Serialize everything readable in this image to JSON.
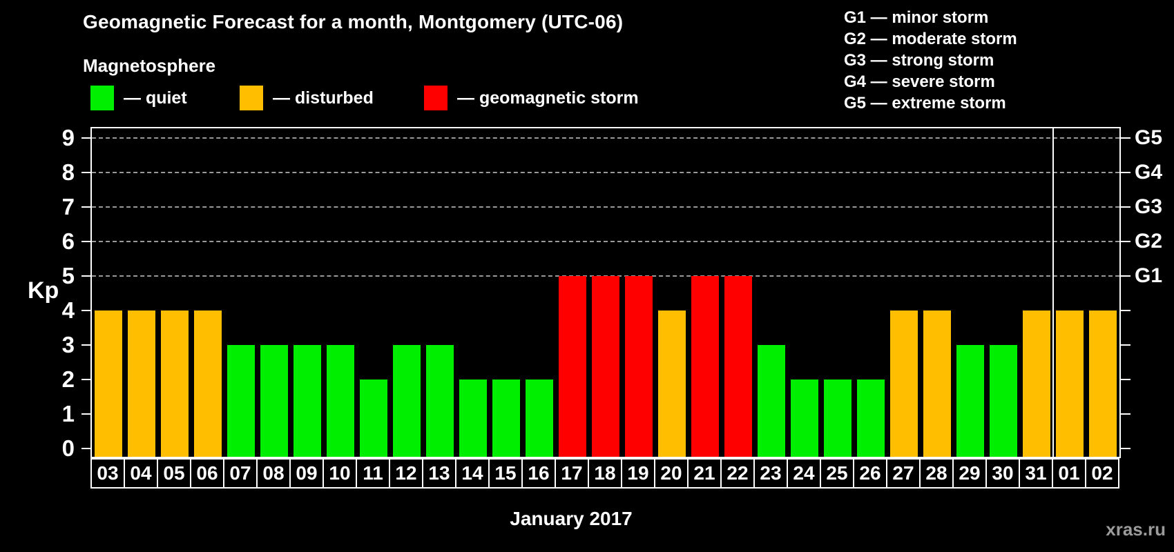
{
  "header": {
    "title": "Geomagnetic Forecast for a month, Montgomery (UTC-06)",
    "subtitle": "Magnetosphere"
  },
  "legend": {
    "items": [
      {
        "key": "quiet",
        "label": "— quiet",
        "color": "#00ee00"
      },
      {
        "key": "disturbed",
        "label": "— disturbed",
        "color": "#ffbf00"
      },
      {
        "key": "storm",
        "label": "— geomagnetic storm",
        "color": "#ff0000"
      }
    ]
  },
  "g_scale_legend": {
    "lines": [
      "G1 — minor storm",
      "G2 — moderate storm",
      "G3 — strong storm",
      "G4 — severe storm",
      "G5 — extreme storm"
    ]
  },
  "axes": {
    "y_label": "Kp",
    "y_ticks": [
      0,
      1,
      2,
      3,
      4,
      5,
      6,
      7,
      8,
      9
    ],
    "right_g_labels": [
      {
        "kp": 5,
        "label": "G1"
      },
      {
        "kp": 6,
        "label": "G2"
      },
      {
        "kp": 7,
        "label": "G3"
      },
      {
        "kp": 8,
        "label": "G4"
      },
      {
        "kp": 9,
        "label": "G5"
      }
    ],
    "x_label": "January 2017"
  },
  "chart_data": {
    "type": "bar",
    "title": "Geomagnetic Forecast for a month, Montgomery (UTC-06)",
    "xlabel": "January 2017",
    "ylabel": "Kp",
    "ylim": [
      0,
      9
    ],
    "grid": "dashed horizontal at G-storm levels",
    "gridlines_at": [
      5,
      6,
      7,
      8,
      9
    ],
    "legend_position": "top-left",
    "categories": [
      "03",
      "04",
      "05",
      "06",
      "07",
      "08",
      "09",
      "10",
      "11",
      "12",
      "13",
      "14",
      "15",
      "16",
      "17",
      "18",
      "19",
      "20",
      "21",
      "22",
      "23",
      "24",
      "25",
      "26",
      "27",
      "28",
      "29",
      "30",
      "31",
      "01",
      "02"
    ],
    "values": [
      4,
      4,
      4,
      4,
      3,
      3,
      3,
      3,
      2,
      3,
      3,
      2,
      2,
      2,
      5,
      5,
      5,
      4,
      5,
      5,
      3,
      2,
      2,
      2,
      4,
      4,
      3,
      3,
      4,
      4,
      4
    ],
    "statuses": [
      "disturbed",
      "disturbed",
      "disturbed",
      "disturbed",
      "quiet",
      "quiet",
      "quiet",
      "quiet",
      "quiet",
      "quiet",
      "quiet",
      "quiet",
      "quiet",
      "quiet",
      "storm",
      "storm",
      "storm",
      "disturbed",
      "storm",
      "storm",
      "quiet",
      "quiet",
      "quiet",
      "quiet",
      "disturbed",
      "disturbed",
      "quiet",
      "quiet",
      "disturbed",
      "disturbed",
      "disturbed"
    ],
    "status_colors": {
      "quiet": "#00ee00",
      "disturbed": "#ffbf00",
      "storm": "#ff0000"
    },
    "month_boundary_after_category": "31"
  },
  "footer": {
    "watermark": "xras.ru"
  }
}
